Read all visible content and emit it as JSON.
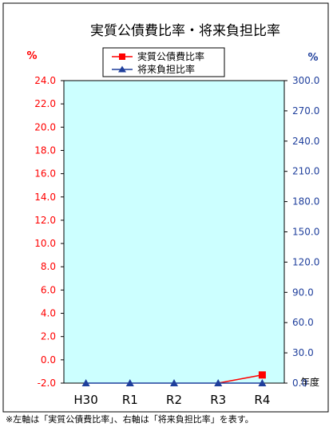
{
  "chart_data": {
    "type": "line",
    "title": "実質公債費比率・将来負担比率",
    "categories": [
      "H30",
      "R1",
      "R2",
      "R3",
      "R4"
    ],
    "x_unit": "年度",
    "left_axis": {
      "unit": "%",
      "ylim": [
        -2.0,
        24.0
      ],
      "ticks": [
        "-2.0",
        "0.0",
        "2.0",
        "4.0",
        "6.0",
        "8.0",
        "10.0",
        "12.0",
        "14.0",
        "16.0",
        "18.0",
        "20.0",
        "22.0",
        "24.0"
      ]
    },
    "right_axis": {
      "unit": "%",
      "ylim": [
        0.0,
        300.0
      ],
      "ticks": [
        "0.0",
        "30.0",
        "60.0",
        "90.0",
        "120.0",
        "150.0",
        "180.0",
        "210.0",
        "240.0",
        "270.0",
        "300.0"
      ]
    },
    "series": [
      {
        "name": "実質公債費比率",
        "axis": "left",
        "color": "#ff0000",
        "marker": "square",
        "values": [
          null,
          null,
          null,
          -2.0,
          -1.3
        ]
      },
      {
        "name": "将来負担比率",
        "axis": "right",
        "color": "#1f3f9c",
        "marker": "triangle",
        "values": [
          0.0,
          0.0,
          0.0,
          0.0,
          0.0
        ]
      }
    ],
    "plot_background": "#ccffff",
    "grid": false,
    "legend_position": "top-center",
    "footnote": "※左軸は「実質公債費比率」、右軸は「将来負担比率」を表す。"
  }
}
